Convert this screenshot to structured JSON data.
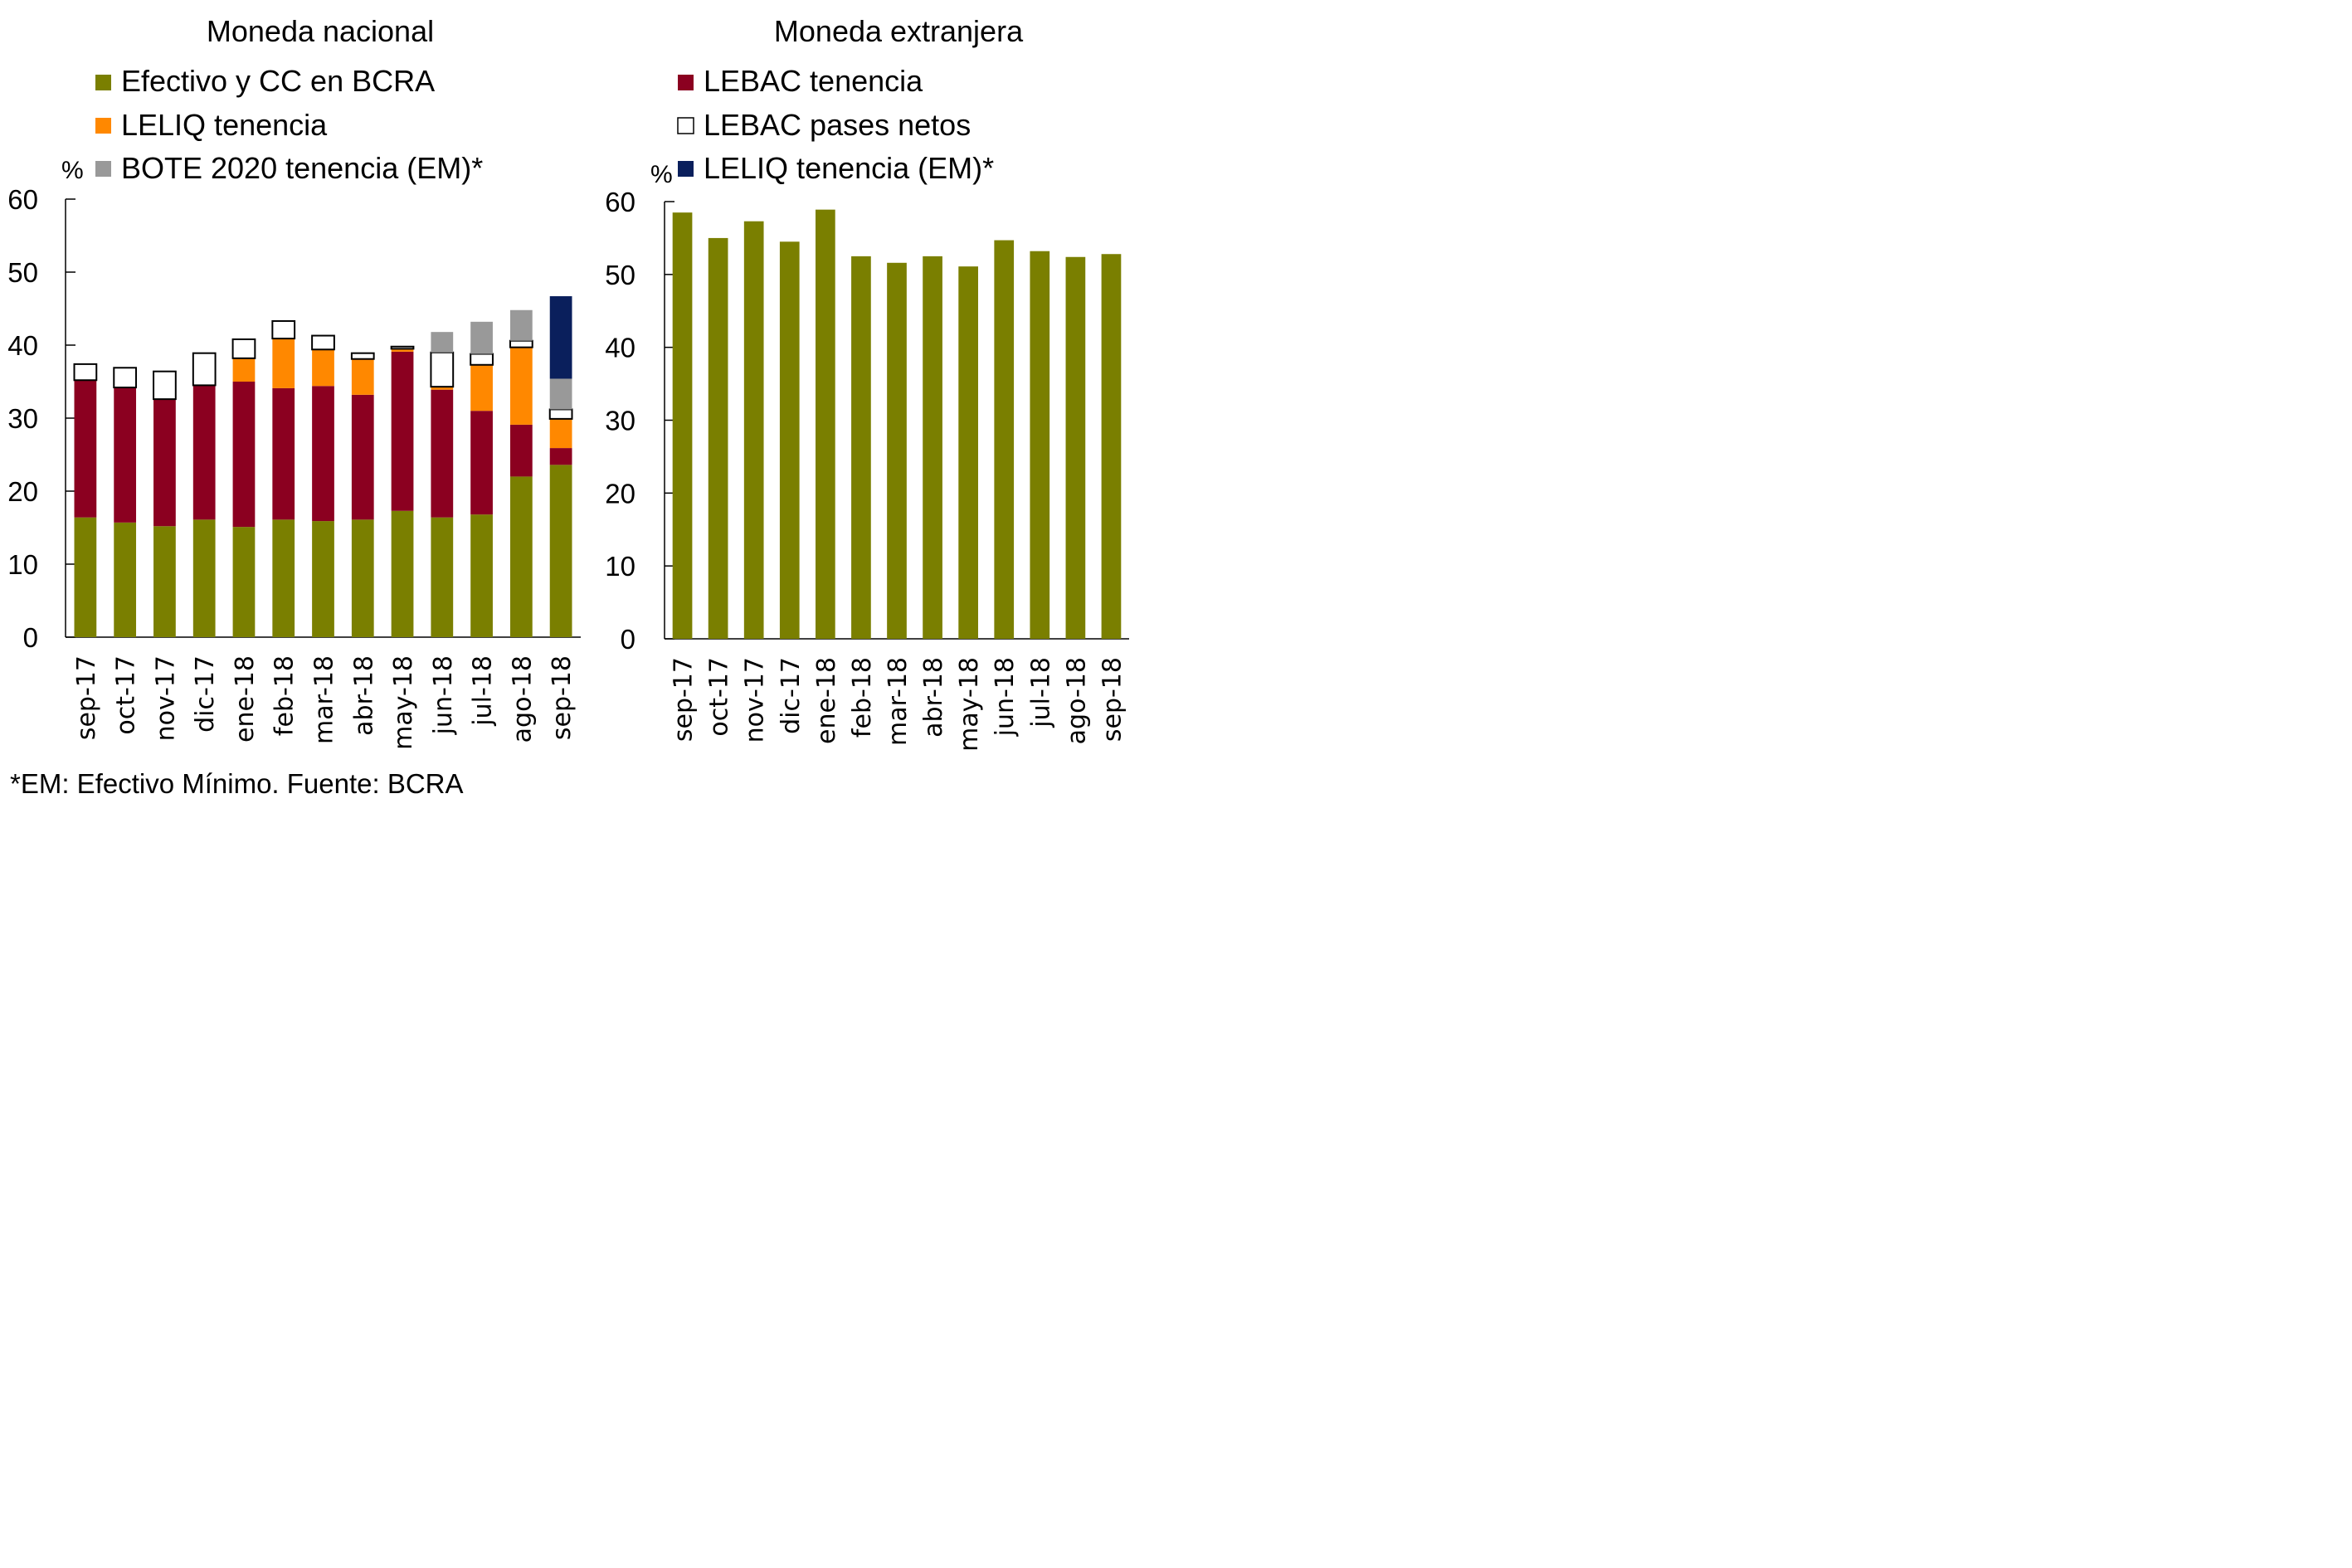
{
  "chart_data": [
    {
      "type": "bar",
      "stacked": true,
      "title": "Moneda nacional",
      "ylabel": "%",
      "xlabel": "",
      "ylim": [
        0,
        60
      ],
      "yticks": [
        0,
        10,
        20,
        30,
        40,
        50,
        60
      ],
      "grid": false,
      "legend_position": "top",
      "categories": [
        "sep-17",
        "oct-17",
        "nov-17",
        "dic-17",
        "ene-18",
        "feb-18",
        "mar-18",
        "abr-18",
        "may-18",
        "jun-18",
        "jul-18",
        "ago-18",
        "sep-18"
      ],
      "series": [
        {
          "name": "Efectivo y CC en BCRA",
          "color": "#7a7f00",
          "outlined": false,
          "values": [
            16.4,
            15.7,
            15.2,
            16.1,
            15.1,
            16.1,
            15.9,
            16.1,
            17.3,
            16.4,
            16.8,
            22.0,
            23.6
          ]
        },
        {
          "name": "LEBAC tenencia",
          "color": "#8b0020",
          "outlined": false,
          "values": [
            18.8,
            18.5,
            17.4,
            18.4,
            19.9,
            18.0,
            18.5,
            17.1,
            21.8,
            17.5,
            14.2,
            7.1,
            2.3
          ]
        },
        {
          "name": "LELIQ tenencia",
          "color": "#ff8800",
          "outlined": false,
          "values": [
            0,
            0,
            0,
            0,
            3.2,
            6.8,
            5.0,
            4.9,
            0.4,
            0.4,
            6.3,
            10.6,
            4.0
          ]
        },
        {
          "name": "LEBAC pases netos",
          "color": "#ffffff",
          "outlined": true,
          "values": [
            2.2,
            2.7,
            3.8,
            4.4,
            2.6,
            2.4,
            1.9,
            0.8,
            0.3,
            4.7,
            1.5,
            0.9,
            1.3
          ]
        },
        {
          "name": "BOTE 2020 tenencia (EM)*",
          "color": "#999999",
          "outlined": false,
          "values": [
            0,
            0,
            0,
            0,
            0,
            0,
            0,
            0,
            0,
            2.8,
            4.4,
            4.2,
            4.2
          ]
        },
        {
          "name": "LELIQ tenencia (EM)*",
          "color": "#0a1f5c",
          "outlined": false,
          "values": [
            0,
            0,
            0,
            0,
            0,
            0,
            0,
            0,
            0,
            0,
            0,
            0,
            11.3
          ]
        }
      ]
    },
    {
      "type": "bar",
      "stacked": true,
      "title": "Moneda extranjera",
      "ylabel": "%",
      "xlabel": "",
      "ylim": [
        0,
        60
      ],
      "yticks": [
        0,
        10,
        20,
        30,
        40,
        50,
        60
      ],
      "grid": false,
      "legend_position": "top",
      "categories": [
        "sep-17",
        "oct-17",
        "nov-17",
        "dic-17",
        "ene-18",
        "feb-18",
        "mar-18",
        "abr-18",
        "may-18",
        "jun-18",
        "jul-18",
        "ago-18",
        "sep-18"
      ],
      "series": [
        {
          "name": "Efectivo y CC en BCRA",
          "color": "#7a7f00",
          "outlined": false,
          "values": [
            58.5,
            55.0,
            57.3,
            54.5,
            58.9,
            52.5,
            51.6,
            52.5,
            51.1,
            54.7,
            53.2,
            52.4,
            52.8
          ]
        }
      ]
    }
  ],
  "legend_left": [
    {
      "label": "Efectivo y CC en BCRA",
      "color": "#7a7f00",
      "outlined": false
    },
    {
      "label": "LELIQ tenencia",
      "color": "#ff8800",
      "outlined": false
    },
    {
      "label": "BOTE 2020 tenencia (EM)*",
      "color": "#999999",
      "outlined": false
    }
  ],
  "legend_right": [
    {
      "label": "LEBAC tenencia",
      "color": "#8b0020",
      "outlined": false
    },
    {
      "label": "LEBAC pases netos",
      "color": "#ffffff",
      "outlined": true
    },
    {
      "label": "LELIQ tenencia (EM)*",
      "color": "#0a1f5c",
      "outlined": false
    }
  ],
  "footnote": "*EM: Efectivo Mínimo. Fuente: BCRA"
}
